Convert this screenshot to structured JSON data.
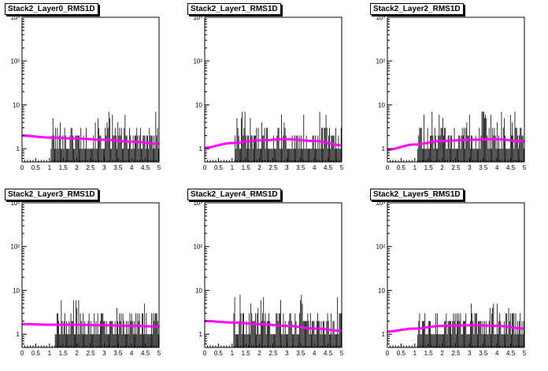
{
  "chart_data": [
    {
      "type": "bar",
      "title": "Stack2_Layer0_RMS1D",
      "xlim": [
        0,
        5
      ],
      "ylim": [
        0.5,
        1000
      ],
      "log_y": true,
      "x_ticks": [
        "0",
        "0.5",
        "1",
        "1.5",
        "2",
        "2.5",
        "3",
        "3.5",
        "4",
        "4.5",
        "5"
      ],
      "y_ticks": [
        "1",
        "10",
        "10²",
        "10³"
      ],
      "hist_x_start": 1.05,
      "hist_peak": 7,
      "fit_curve": {
        "color": "#ff00ff",
        "x": [
          0,
          1,
          2,
          3,
          4,
          5
        ],
        "y": [
          2.0,
          1.8,
          1.7,
          1.6,
          1.45,
          1.3
        ]
      }
    },
    {
      "type": "bar",
      "title": "Stack2_Layer1_RMS1D",
      "xlim": [
        0,
        5
      ],
      "ylim": [
        0.5,
        1000
      ],
      "log_y": true,
      "x_ticks": [
        "0",
        "0.5",
        "1",
        "1.5",
        "2",
        "2.5",
        "3",
        "3.5",
        "4",
        "4.5",
        "5"
      ],
      "y_ticks": [
        "1",
        "10",
        "10²",
        "10³"
      ],
      "hist_x_start": 1.1,
      "hist_peak": 7,
      "fit_curve": {
        "color": "#ff00ff",
        "x": [
          0,
          1,
          2,
          3,
          4,
          5
        ],
        "y": [
          1.05,
          1.35,
          1.55,
          1.65,
          1.5,
          1.2
        ]
      }
    },
    {
      "type": "bar",
      "title": "Stack2_Layer2_RMS1D",
      "xlim": [
        0,
        5
      ],
      "ylim": [
        0.5,
        1000
      ],
      "log_y": true,
      "x_ticks": [
        "0",
        "0.5",
        "1",
        "1.5",
        "2",
        "2.5",
        "3",
        "3.5",
        "4",
        "4.5",
        "5"
      ],
      "y_ticks": [
        "1",
        "10",
        "10²",
        "10³"
      ],
      "hist_x_start": 1.1,
      "hist_peak": 7,
      "fit_curve": {
        "color": "#ff00ff",
        "x": [
          0,
          1,
          2,
          3,
          4,
          5
        ],
        "y": [
          0.95,
          1.25,
          1.5,
          1.6,
          1.65,
          1.45
        ]
      }
    },
    {
      "type": "bar",
      "title": "Stack2_Layer3_RMS1D",
      "xlim": [
        0,
        5
      ],
      "ylim": [
        0.5,
        1000
      ],
      "log_y": true,
      "x_ticks": [
        "0",
        "0.5",
        "1",
        "1.5",
        "2",
        "2.5",
        "3",
        "3.5",
        "4",
        "4.5",
        "5"
      ],
      "y_ticks": [
        "1",
        "10",
        "10²",
        "10³"
      ],
      "hist_x_start": 1.2,
      "hist_peak": 6,
      "fit_curve": {
        "color": "#ff00ff",
        "x": [
          0,
          1,
          2,
          3,
          4,
          5
        ],
        "y": [
          1.7,
          1.65,
          1.65,
          1.6,
          1.55,
          1.5
        ]
      }
    },
    {
      "type": "bar",
      "title": "Stack2_Layer4_RMS1D",
      "xlim": [
        0,
        5
      ],
      "ylim": [
        0.5,
        1000
      ],
      "log_y": true,
      "x_ticks": [
        "0",
        "0.5",
        "1",
        "1.5",
        "2",
        "2.5",
        "3",
        "3.5",
        "4",
        "4.5",
        "5"
      ],
      "y_ticks": [
        "1",
        "10",
        "10²",
        "10³"
      ],
      "hist_x_start": 1.05,
      "hist_peak": 8,
      "fit_curve": {
        "color": "#ff00ff",
        "x": [
          0,
          1,
          2,
          3,
          4,
          5
        ],
        "y": [
          2.0,
          1.85,
          1.7,
          1.55,
          1.35,
          1.2
        ]
      }
    },
    {
      "type": "bar",
      "title": "Stack2_Layer5_RMS1D",
      "xlim": [
        0,
        5
      ],
      "ylim": [
        0.5,
        1000
      ],
      "log_y": true,
      "x_ticks": [
        "0",
        "0.5",
        "1",
        "1.5",
        "2",
        "2.5",
        "3",
        "3.5",
        "4",
        "4.5",
        "5"
      ],
      "y_ticks": [
        "1",
        "10",
        "10²",
        "10³"
      ],
      "hist_x_start": 1.1,
      "hist_peak": 5,
      "fit_curve": {
        "color": "#ff00ff",
        "x": [
          0,
          1,
          2,
          3,
          4,
          5
        ],
        "y": [
          1.15,
          1.35,
          1.55,
          1.6,
          1.55,
          1.35
        ]
      }
    }
  ],
  "colors": {
    "fit": "#ff00ff",
    "hist": "#000000",
    "frame": "#000000"
  }
}
